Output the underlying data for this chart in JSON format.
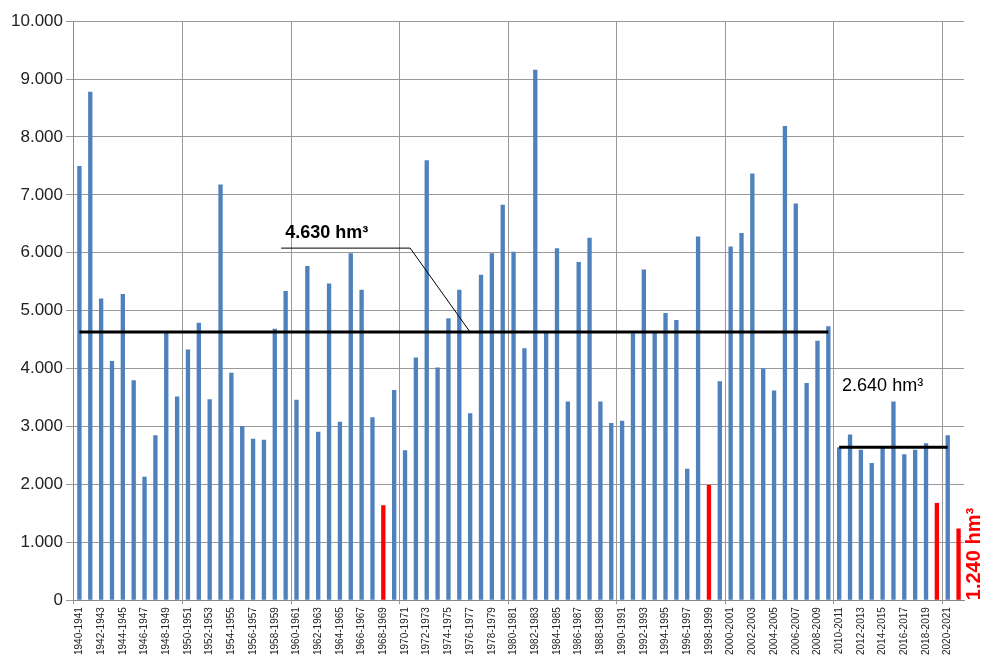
{
  "chart_data": {
    "type": "bar",
    "categories": [
      "1940-1941",
      null,
      "1942-1943",
      null,
      "1944-1945",
      null,
      "1946-1947",
      null,
      "1948-1949",
      null,
      "1950-1951",
      null,
      "1952-1953",
      null,
      "1954-1955",
      null,
      "1956-1957",
      null,
      "1958-1959",
      null,
      "1960-1961",
      null,
      "1962-1963",
      null,
      "1964-1965",
      null,
      "1966-1967",
      null,
      "1968-1969",
      null,
      "1970-1971",
      null,
      "1972-1973",
      null,
      "1974-1975",
      null,
      "1976-1977",
      null,
      "1978-1979",
      null,
      "1980-1981",
      null,
      "1982-1983",
      null,
      "1984-1985",
      null,
      "1986-1987",
      null,
      "1988-1989",
      null,
      "1990-1991",
      null,
      "1992-1993",
      null,
      "1994-1995",
      null,
      "1996-1997",
      null,
      "1998-1999",
      null,
      "2000-2001",
      null,
      "2002-2003",
      null,
      "2004-2005",
      null,
      "2006-2007",
      null,
      "2008-2009",
      null,
      "2010-2011",
      null,
      "2012-2013",
      null,
      "2014-2015",
      null,
      "2016-2017",
      null,
      "2018-2019",
      null,
      "2020-2021",
      null
    ],
    "series": [
      {
        "values": [
          7500,
          8780,
          5210,
          4130,
          5290,
          3800,
          2130,
          2850,
          4620,
          3520,
          4330,
          4790,
          3470,
          7180,
          3930,
          3010,
          2790,
          2770,
          4690,
          5340,
          3460,
          5770,
          2910,
          5470,
          3080,
          5990,
          5360,
          3160,
          1640,
          3630,
          2590,
          4190,
          7600,
          4020,
          4870,
          5360,
          3230,
          5620,
          5990,
          6830,
          6020,
          4350,
          9160,
          4620,
          6080,
          3430,
          5840,
          6260,
          3430,
          3060,
          3100,
          4610,
          5710,
          4650,
          4960,
          4840,
          2270,
          6280,
          1990,
          3780,
          6110,
          6340,
          7370,
          4000,
          3620,
          8190,
          6850,
          3750,
          4480,
          4730,
          2640,
          2860,
          2600,
          2370,
          2640,
          3430,
          2520,
          2600,
          2710,
          1680,
          2850,
          1240
        ],
        "colors": [
          "#4f81bd",
          "#4f81bd",
          "#4f81bd",
          "#4f81bd",
          "#4f81bd",
          "#4f81bd",
          "#4f81bd",
          "#4f81bd",
          "#4f81bd",
          "#4f81bd",
          "#4f81bd",
          "#4f81bd",
          "#4f81bd",
          "#4f81bd",
          "#4f81bd",
          "#4f81bd",
          "#4f81bd",
          "#4f81bd",
          "#4f81bd",
          "#4f81bd",
          "#4f81bd",
          "#4f81bd",
          "#4f81bd",
          "#4f81bd",
          "#4f81bd",
          "#4f81bd",
          "#4f81bd",
          "#4f81bd",
          "#ff0000",
          "#4f81bd",
          "#4f81bd",
          "#4f81bd",
          "#4f81bd",
          "#4f81bd",
          "#4f81bd",
          "#4f81bd",
          "#4f81bd",
          "#4f81bd",
          "#4f81bd",
          "#4f81bd",
          "#4f81bd",
          "#4f81bd",
          "#4f81bd",
          "#4f81bd",
          "#4f81bd",
          "#4f81bd",
          "#4f81bd",
          "#4f81bd",
          "#4f81bd",
          "#4f81bd",
          "#4f81bd",
          "#4f81bd",
          "#4f81bd",
          "#4f81bd",
          "#4f81bd",
          "#4f81bd",
          "#4f81bd",
          "#4f81bd",
          "#ff0000",
          "#4f81bd",
          "#4f81bd",
          "#4f81bd",
          "#4f81bd",
          "#4f81bd",
          "#4f81bd",
          "#4f81bd",
          "#4f81bd",
          "#4f81bd",
          "#4f81bd",
          "#4f81bd",
          "#4f81bd",
          "#4f81bd",
          "#4f81bd",
          "#4f81bd",
          "#4f81bd",
          "#4f81bd",
          "#4f81bd",
          "#4f81bd",
          "#4f81bd",
          "#ff0000",
          "#4f81bd",
          "#ff0000"
        ],
        "value_labels": [
          null,
          null,
          null,
          null,
          null,
          null,
          null,
          null,
          null,
          null,
          null,
          null,
          null,
          null,
          null,
          null,
          null,
          null,
          null,
          null,
          null,
          null,
          null,
          null,
          null,
          null,
          null,
          null,
          null,
          null,
          null,
          null,
          null,
          null,
          null,
          null,
          null,
          null,
          null,
          null,
          null,
          null,
          null,
          null,
          null,
          null,
          null,
          null,
          null,
          null,
          null,
          null,
          null,
          null,
          null,
          null,
          null,
          null,
          null,
          null,
          null,
          null,
          null,
          null,
          null,
          null,
          null,
          null,
          null,
          null,
          null,
          null,
          null,
          null,
          null,
          null,
          null,
          null,
          null,
          null,
          null,
          "1.240 hm³"
        ]
      },
      {
        "type": "line",
        "color": "#000000",
        "values": [
          4630,
          4630,
          4630,
          4630,
          4630,
          4630,
          4630,
          4630,
          4630,
          4630,
          4630,
          4630,
          4630,
          4630,
          4630,
          4630,
          4630,
          4630,
          4630,
          4630,
          4630,
          4630,
          4630,
          4630,
          4630,
          4630,
          4630,
          4630,
          4630,
          4630,
          4630,
          4630,
          4630,
          4630,
          4630,
          4630,
          4630,
          4630,
          4630,
          4630,
          4630,
          4630,
          4630,
          4630,
          4630,
          4630,
          4630,
          4630,
          4630,
          4630,
          4630,
          4630,
          4630,
          4630,
          4630,
          4630,
          4630,
          4630,
          4630,
          4630,
          4630,
          4630,
          4630,
          4630,
          4630,
          4630,
          4630,
          4630,
          4630,
          4630,
          null,
          null,
          null,
          null,
          null,
          null,
          null,
          null,
          null,
          null,
          null,
          null
        ]
      },
      {
        "type": "line",
        "color": "#000000",
        "values": [
          null,
          null,
          null,
          null,
          null,
          null,
          null,
          null,
          null,
          null,
          null,
          null,
          null,
          null,
          null,
          null,
          null,
          null,
          null,
          null,
          null,
          null,
          null,
          null,
          null,
          null,
          null,
          null,
          null,
          null,
          null,
          null,
          null,
          null,
          null,
          null,
          null,
          null,
          null,
          null,
          null,
          null,
          null,
          null,
          null,
          null,
          null,
          null,
          null,
          null,
          null,
          null,
          null,
          null,
          null,
          null,
          null,
          null,
          null,
          null,
          null,
          null,
          null,
          null,
          null,
          null,
          null,
          null,
          null,
          null,
          2640,
          2640,
          2640,
          2640,
          2640,
          2640,
          2640,
          2640,
          2640,
          2640,
          2640,
          null
        ]
      }
    ],
    "annotations": [
      {
        "text": "4.630 hm³",
        "x": "1976-1977",
        "y": 4630
      },
      {
        "text": "2.640 hm³",
        "x": "2014-2015",
        "y": 2640
      }
    ],
    "ylim": [
      0,
      10000
    ],
    "yticks": [
      0,
      {
        "value": 1000,
        "label": "1.000"
      },
      {
        "value": 2000,
        "label": "2.000"
      },
      {
        "value": 3000,
        "label": "3.000"
      },
      {
        "value": 4000,
        "label": "4.000"
      },
      {
        "value": 5000,
        "label": "5.000"
      },
      {
        "value": 6000,
        "label": "6.000"
      },
      {
        "value": 7000,
        "label": "7.000"
      },
      {
        "value": 8000,
        "label": "8.000"
      },
      {
        "value": 9000,
        "label": "9.000"
      },
      {
        "value": 10000,
        "label": "10.000"
      }
    ],
    "grid": true,
    "legend": false
  }
}
